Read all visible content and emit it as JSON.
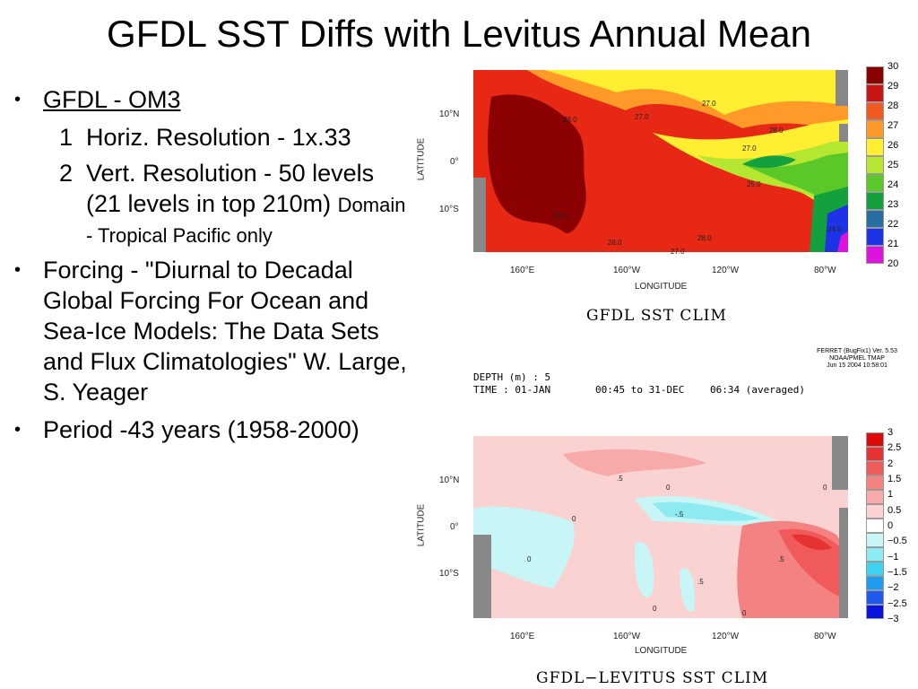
{
  "slide": {
    "title": "GFDL SST Diffs with Levitus Annual Mean"
  },
  "bullets": {
    "b1": "GFDL - OM3",
    "sub1_num": "1",
    "sub1_text": "Horiz. Resolution - 1x.33",
    "sub2_num": "2",
    "sub2_text": "Vert. Resolution -    50 levels (21 levels in top 210m)",
    "sub2_small": "Domain - Tropical Pacific only",
    "b2": "Forcing - \"Diurnal to Decadal Global Forcing For Ocean and Sea-Ice Models: The Data Sets and Flux Climatologies\" W. Large, S. Yeager",
    "b3": "Period -43 years (1958-2000)"
  },
  "plot_top": {
    "caption": "GFDL SST CLIM",
    "ylabel": "LATITUDE",
    "xlabel": "LONGITUDE",
    "yticks": [
      "10°N",
      "0°",
      "10°S"
    ],
    "xticks": [
      "160°E",
      "160°W",
      "120°W",
      "80°W"
    ],
    "colorbar": [
      "30",
      "29",
      "28",
      "27",
      "26",
      "25",
      "24",
      "23",
      "22",
      "21",
      "20"
    ],
    "colorbar_colors": [
      "#8b0000",
      "#c81414",
      "#f05a1e",
      "#ff9a28",
      "#ffee32",
      "#b4e632",
      "#5ac828",
      "#14a03c",
      "#286ea0",
      "#1e32e6",
      "#dc14dc"
    ],
    "contour_labels": [
      "28.0",
      "27.0",
      "27.0",
      "27.0",
      "25.0",
      "29.0",
      "28.0",
      "28.0",
      "27.0",
      "24.0",
      "28.0"
    ]
  },
  "ferret": {
    "line1": "FERRET (BugFix1) Ver. 5.53",
    "line2": "NOAA/PMEL TMAP",
    "line3": "Jun 15 2004 10:58:01",
    "depth": "DEPTH (m) : 5",
    "time": "TIME : 01-JAN",
    "time2": "00:45 to 31-DEC",
    "time3": "06:34 (averaged)"
  },
  "plot_bottom": {
    "caption": "GFDL−LEVITUS SST CLIM",
    "ylabel": "LATITUDE",
    "xlabel": "LONGITUDE",
    "yticks": [
      "10°N",
      "0°",
      "10°S"
    ],
    "xticks": [
      "160°E",
      "160°W",
      "120°W",
      "80°W"
    ],
    "colorbar": [
      "3",
      "2.5",
      "2",
      "1.5",
      "1",
      "0.5",
      "0",
      "−0.5",
      "−1",
      "−1.5",
      "−2",
      "−2.5",
      "−3"
    ],
    "colorbar_colors": [
      "#dc0a0a",
      "#e63232",
      "#f05a5a",
      "#f58282",
      "#f8aaaa",
      "#fbd2d2",
      "#ffffff",
      "#c8f5f5",
      "#8ceaf0",
      "#3cd2f0",
      "#1e9cf0",
      "#1e5af0",
      "#0a14dc"
    ],
    "contour_labels": [
      "0",
      ".5",
      "-.5",
      "0",
      "0",
      ".5",
      "0",
      ".5",
      "0",
      "0"
    ]
  }
}
